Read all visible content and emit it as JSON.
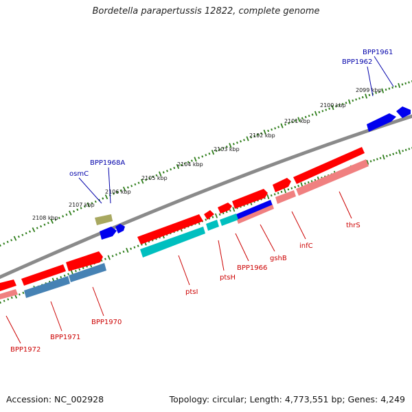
{
  "title": "Bordetella parapertussis 12822, complete genome",
  "accession": "Accession: NC_002928",
  "topology": "Topology: circular; Length: 4,773,551 bp; Genes: 4,249",
  "colors": {
    "backbone": "#808080",
    "tick": "#2e7d1a",
    "gene_forward": "#ff0000",
    "gene_reverse": "#0000ee",
    "cds_forward": "#f08080",
    "cds_reverse": "#00bfbf",
    "steelblue": "#4682b4",
    "olive": "#a8a860",
    "label_red": "#cc0000",
    "label_blue": "#0000aa"
  },
  "scale_labels": [
    {
      "kbp": 2099,
      "text": "2099 kbp"
    },
    {
      "kbp": 2100,
      "text": "2100 kbp"
    },
    {
      "kbp": 2101,
      "text": "2101 kbp"
    },
    {
      "kbp": 2102,
      "text": "2102 kbp"
    },
    {
      "kbp": 2103,
      "text": "2103 kbp"
    },
    {
      "kbp": 2104,
      "text": "2104 kbp"
    },
    {
      "kbp": 2105,
      "text": "2105 kbp"
    },
    {
      "kbp": 2106,
      "text": "2106 kbp"
    },
    {
      "kbp": 2107,
      "text": "2107 kbp"
    },
    {
      "kbp": 2108,
      "text": "2108 kbp"
    }
  ],
  "gene_labels": [
    {
      "text": "BPP1961",
      "strand": "reverse"
    },
    {
      "text": "BPP1962",
      "strand": "reverse"
    },
    {
      "text": "BPP1968A",
      "strand": "reverse"
    },
    {
      "text": "osmC",
      "strand": "reverse"
    },
    {
      "text": "thrS",
      "strand": "forward"
    },
    {
      "text": "infC",
      "strand": "forward"
    },
    {
      "text": "gshB",
      "strand": "forward"
    },
    {
      "text": "BPP1966",
      "strand": "forward"
    },
    {
      "text": "ptsH",
      "strand": "forward"
    },
    {
      "text": "ptsI",
      "strand": "forward"
    },
    {
      "text": "BPP1970",
      "strand": "forward"
    },
    {
      "text": "BPP1971",
      "strand": "forward"
    },
    {
      "text": "BPP1972",
      "strand": "forward"
    }
  ]
}
